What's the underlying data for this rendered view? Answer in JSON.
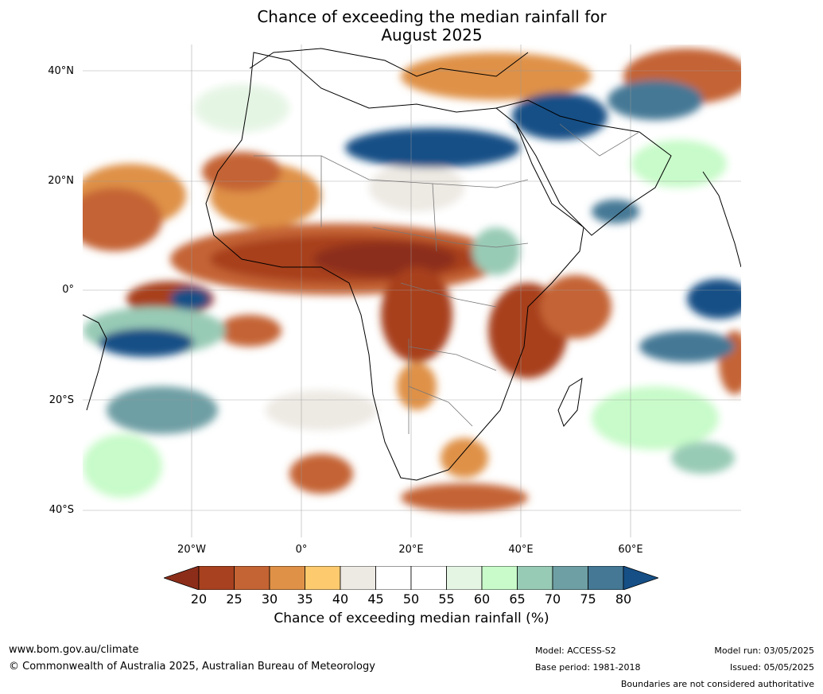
{
  "title_line1": "Chance of exceeding the median rainfall for",
  "title_line2": "August 2025",
  "lat_labels": [
    "40°N",
    "20°N",
    "0°",
    "20°S",
    "40°S"
  ],
  "lon_labels": [
    "20°W",
    "0°",
    "20°E",
    "40°E",
    "60°E"
  ],
  "colorbar": {
    "ticks": [
      "20",
      "25",
      "30",
      "35",
      "40",
      "45",
      "50",
      "55",
      "60",
      "65",
      "70",
      "75",
      "80"
    ],
    "label": "Chance of exceeding median rainfall (%)",
    "colors": {
      "below20": "#8c2d1a",
      "20-25": "#a8411f",
      "25-30": "#c46434",
      "30-35": "#df9147",
      "35-40": "#fdcb6e",
      "40-45": "#ede9e3",
      "45-50": "#ffffff",
      "50-55": "#ffffff",
      "55-60": "#e5f5e4",
      "60-65": "#c8fbc9",
      "65-70": "#98cbb6",
      "70-75": "#6e9fa4",
      "75-80": "#447895",
      "above80": "#154f86"
    }
  },
  "footer": {
    "url": "www.bom.gov.au/climate",
    "copyright": "© Commonwealth of Australia 2025, Australian Bureau of Meteorology",
    "model": "Model: ACCESS-S2",
    "base_period": "Base period: 1981-2018",
    "model_run": "Model run: 03/05/2025",
    "issued": "Issued: 05/05/2025",
    "disclaimer": "Boundaries are not considered authoritative"
  }
}
